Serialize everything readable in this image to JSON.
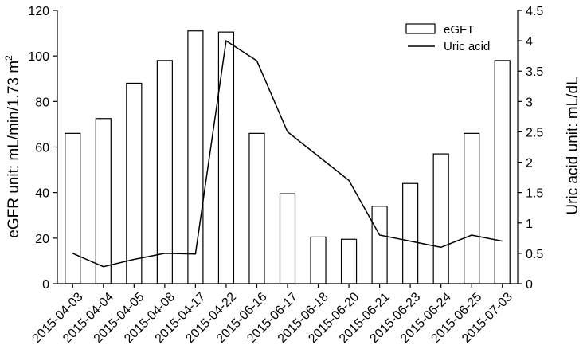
{
  "chart_data": {
    "type": "bar",
    "categories": [
      "2015-04-03",
      "2015-04-04",
      "2015-04-05",
      "2015-04-08",
      "2015-04-17",
      "2015-04-22",
      "2015-06-16",
      "2015-06-17",
      "2015-06-18",
      "2015-06-20",
      "2015-06-21",
      "2015-06-23",
      "2015-06-24",
      "2015-06-25",
      "2015-07-03"
    ],
    "series": [
      {
        "name": "eGFT",
        "kind": "bar",
        "axis": "left",
        "values": [
          66,
          72.5,
          88,
          98,
          111,
          110.5,
          66,
          39.5,
          20.5,
          19.5,
          34,
          44,
          57,
          66,
          98
        ]
      },
      {
        "name": "Uric acid",
        "kind": "line",
        "axis": "right",
        "values": [
          0.5,
          0.28,
          0.4,
          0.5,
          0.49,
          4.0,
          3.67,
          2.5,
          2.1,
          1.7,
          0.8,
          0.7,
          0.6,
          0.8,
          0.7
        ]
      }
    ],
    "ylabel": "eGFR unit: mL/min/1.73 m",
    "ylabel_sup": "2",
    "y2label": "Uric acid unit: mL/dL",
    "ylim": [
      0,
      120
    ],
    "y2lim": [
      0,
      4.5
    ],
    "yticks": [
      "0",
      "20",
      "40",
      "60",
      "80",
      "100",
      "120"
    ],
    "y2ticks": [
      "0",
      "0.5",
      "1",
      "1.5",
      "2",
      "2.5",
      "3",
      "3.5",
      "4",
      "4.5"
    ],
    "legend_position": "top-right",
    "grid": false
  }
}
